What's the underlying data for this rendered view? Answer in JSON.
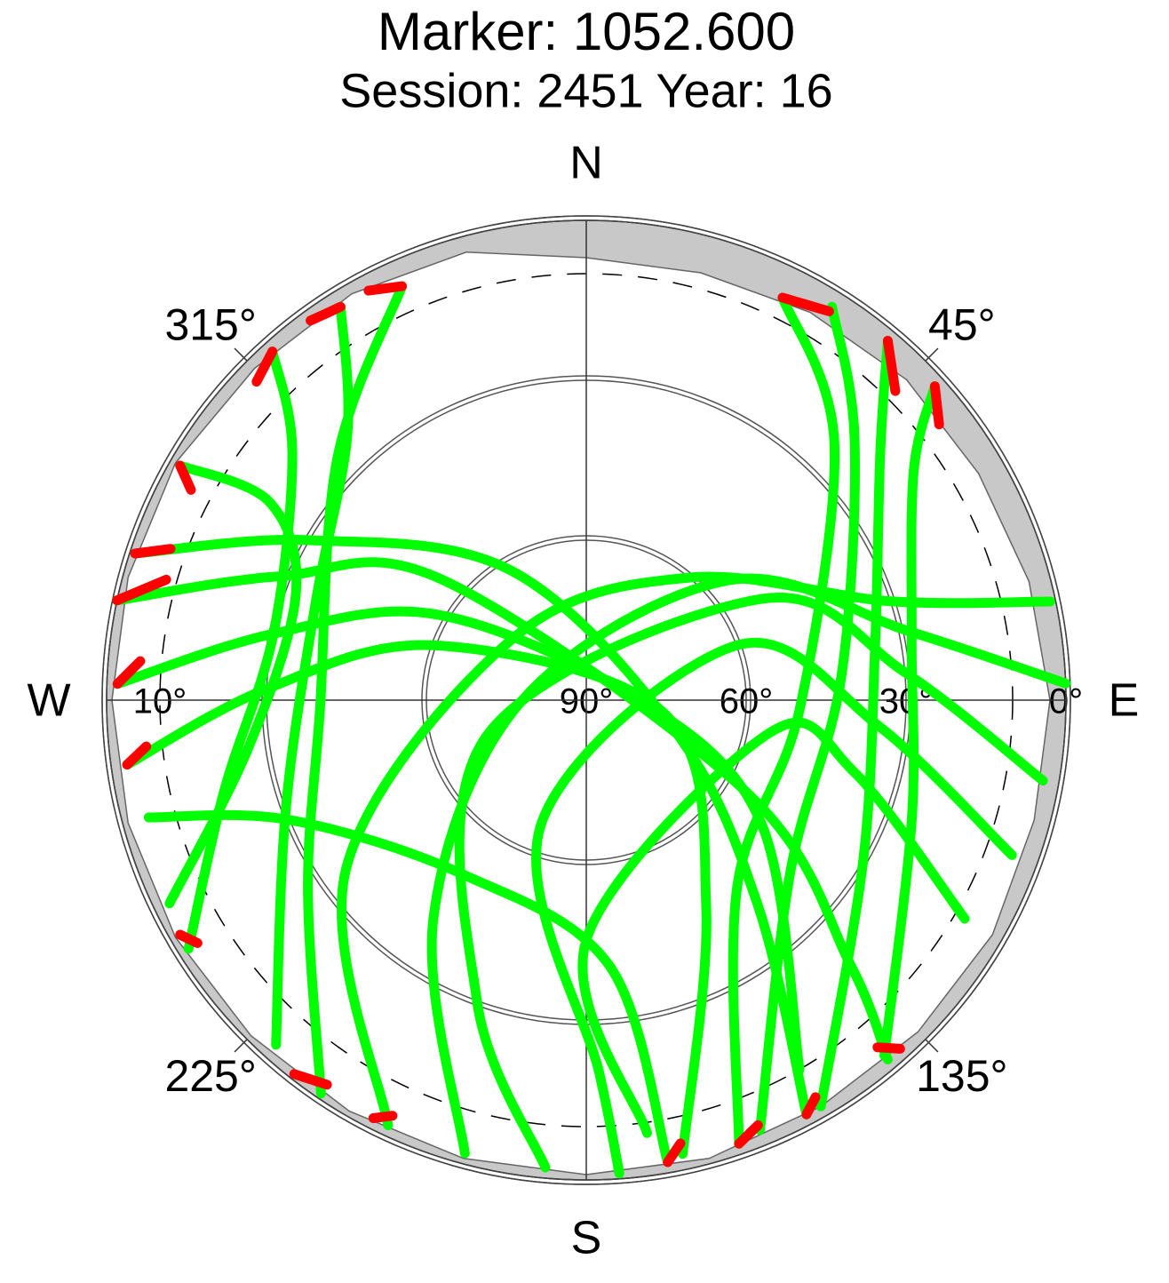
{
  "chart_data": {
    "type": "skyplot",
    "title": "Marker: 1052.600",
    "subtitle": "Session: 2451 Year: 16",
    "rlim": [
      90,
      0
    ],
    "rticks": [
      {
        "value": 0,
        "label": "0°"
      },
      {
        "value": 30,
        "label": "30°"
      },
      {
        "value": 60,
        "label": "60°"
      },
      {
        "value": 90,
        "label": "90°"
      }
    ],
    "cutoff": {
      "value": 10,
      "label": "10°"
    },
    "azticks": [
      {
        "value": 45,
        "label": "45°"
      },
      {
        "value": 135,
        "label": "135°"
      },
      {
        "value": 225,
        "label": "225°"
      },
      {
        "value": 315,
        "label": "315°"
      }
    ],
    "directions": [
      {
        "value": 0,
        "label": "N"
      },
      {
        "value": 90,
        "label": "E"
      },
      {
        "value": 180,
        "label": "S"
      },
      {
        "value": 270,
        "label": "W"
      }
    ],
    "horizon_mask": {
      "color": "#c8c8c8",
      "azimuth": [
        0,
        15,
        30,
        45,
        60,
        75,
        90,
        105,
        120,
        135,
        150,
        165,
        180,
        195,
        210,
        225,
        240,
        255,
        270,
        285,
        300,
        315,
        330,
        345
      ],
      "elevation": [
        7,
        7,
        6,
        5,
        5,
        4,
        3,
        3,
        2,
        2,
        2,
        1,
        1,
        1,
        1,
        1,
        1,
        1,
        1,
        1,
        1,
        2,
        2,
        3
      ]
    },
    "series": [
      {
        "color": "#00ff00",
        "tracks": [
          {
            "azimuth": [
              336,
              314,
              268,
              236,
              214
            ],
            "elevation": [
              5,
              25,
              40,
              27,
              1
            ]
          },
          {
            "azimuth": [
              328,
              318,
              290,
              250,
              222
            ],
            "elevation": [
              3,
              23,
              36,
              30,
              3
            ]
          },
          {
            "azimuth": [
              318,
              310,
              282,
              256,
              238
            ],
            "elevation": [
              2,
              18,
              30,
              20,
              2
            ]
          },
          {
            "azimuth": [
              300,
              302,
              290,
              262,
              244
            ],
            "elevation": [
              2,
              20,
              32,
              26,
              3
            ]
          },
          {
            "azimuth": [
              288,
              300,
              330,
              110,
              140,
              152
            ],
            "elevation": [
              1,
              30,
              62,
              72,
              40,
              2
            ]
          },
          {
            "azimuth": [
              282,
              292,
              310,
              120,
              135,
              140
            ],
            "elevation": [
              0,
              28,
              55,
              55,
              20,
              2
            ]
          },
          {
            "azimuth": [
              272,
              282,
              300,
              90,
              125,
              150
            ],
            "elevation": [
              2,
              30,
              58,
              80,
              50,
              10
            ]
          },
          {
            "azimuth": [
              262,
              272,
              290,
              100,
              150,
              168
            ],
            "elevation": [
              3,
              30,
              60,
              75,
              45,
              3
            ]
          },
          {
            "azimuth": [
              255,
              248,
              215,
              175,
              170
            ],
            "elevation": [
              5,
              30,
              50,
              40,
              2
            ]
          },
          {
            "azimuth": [
              26,
              44,
              93,
              141,
              161
            ],
            "elevation": [
              6,
              23,
              50,
              45,
              2
            ]
          },
          {
            "azimuth": [
              32,
              46,
              85,
              130,
              158
            ],
            "elevation": [
              3,
              20,
              42,
              40,
              3
            ]
          },
          {
            "azimuth": [
              40,
              50,
              80,
              120,
              150
            ],
            "elevation": [
              2,
              18,
              35,
              30,
              2
            ]
          },
          {
            "azimuth": [
              48,
              55,
              80,
              110,
              140
            ],
            "elevation": [
              2,
              15,
              28,
              25,
              3
            ]
          },
          {
            "azimuth": [
              78,
              72,
              40,
              310,
              235,
              205
            ],
            "elevation": [
              1,
              30,
              60,
              72,
              35,
              2
            ]
          },
          {
            "azimuth": [
              88,
              78,
              50,
              270,
              215,
              195
            ],
            "elevation": [
              0,
              28,
              55,
              78,
              40,
              2
            ]
          },
          {
            "azimuth": [
              100,
              85,
              60,
              250,
              200,
              185
            ],
            "elevation": [
              3,
              30,
              52,
              70,
              30,
              2
            ]
          },
          {
            "azimuth": [
              110,
              95,
              70,
              200,
              178,
              176
            ],
            "elevation": [
              5,
              35,
              60,
              65,
              20,
              1
            ]
          },
          {
            "azimuth": [
              120,
              105,
              100,
              180,
              172
            ],
            "elevation": [
              8,
              38,
              55,
              45,
              8
            ]
          }
        ]
      },
      {
        "color": "#ff0000",
        "tracks": [
          {
            "azimuth": [
              336,
              332
            ],
            "elevation": [
              5,
              3
            ]
          },
          {
            "azimuth": [
              328,
              324
            ],
            "elevation": [
              3,
              2
            ]
          },
          {
            "azimuth": [
              318,
              314
            ],
            "elevation": [
              2,
              4
            ]
          },
          {
            "azimuth": [
              300,
              298
            ],
            "elevation": [
              2,
              6
            ]
          },
          {
            "azimuth": [
              288,
              290
            ],
            "elevation": [
              1,
              7
            ]
          },
          {
            "azimuth": [
              282,
              286
            ],
            "elevation": [
              0,
              8
            ]
          },
          {
            "azimuth": [
              272,
              275
            ],
            "elevation": [
              2,
              6
            ]
          },
          {
            "azimuth": [
              262,
              264
            ],
            "elevation": [
              3,
              7
            ]
          },
          {
            "azimuth": [
              26,
              32
            ],
            "elevation": [
              6,
              4
            ]
          },
          {
            "azimuth": [
              40,
              45
            ],
            "elevation": [
              2,
              8
            ]
          },
          {
            "azimuth": [
              48,
              52
            ],
            "elevation": [
              2,
              6
            ]
          },
          {
            "azimuth": [
              150,
              152
            ],
            "elevation": [
              4,
              2
            ]
          },
          {
            "azimuth": [
              158,
              161
            ],
            "elevation": [
              4,
              2
            ]
          },
          {
            "azimuth": [
              168,
              170
            ],
            "elevation": [
              5,
              2
            ]
          },
          {
            "azimuth": [
              140,
              138
            ],
            "elevation": [
              5,
              2
            ]
          },
          {
            "azimuth": [
              205,
              207
            ],
            "elevation": [
              4,
              2
            ]
          },
          {
            "azimuth": [
              214,
              218
            ],
            "elevation": [
              3,
              1
            ]
          },
          {
            "azimuth": [
              238,
              240
            ],
            "elevation": [
              4,
              2
            ]
          }
        ]
      }
    ]
  }
}
